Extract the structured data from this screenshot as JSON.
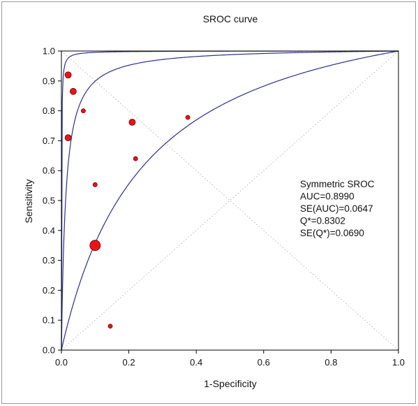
{
  "chart_data": {
    "type": "scatter",
    "title": "SROC curve",
    "xlabel": "1-Specificity",
    "ylabel": "Sensitivity",
    "xlim": [
      0,
      1
    ],
    "ylim": [
      0,
      1
    ],
    "xticks": [
      "0.0",
      "0.2",
      "0.4",
      "0.6",
      "0.8",
      "1.0"
    ],
    "yticks": [
      "0.0",
      "0.1",
      "0.2",
      "0.3",
      "0.4",
      "0.5",
      "0.6",
      "0.7",
      "0.8",
      "0.9",
      "1.0"
    ],
    "grid": "diagonal dotted lines",
    "point_color": "#e8141c",
    "curve_color": "#2b2f8a",
    "points": [
      {
        "x": 0.02,
        "y": 0.92,
        "size": "small"
      },
      {
        "x": 0.035,
        "y": 0.865,
        "size": "small"
      },
      {
        "x": 0.065,
        "y": 0.8,
        "size": "tiny"
      },
      {
        "x": 0.02,
        "y": 0.71,
        "size": "small"
      },
      {
        "x": 0.21,
        "y": 0.762,
        "size": "small"
      },
      {
        "x": 0.375,
        "y": 0.778,
        "size": "tiny"
      },
      {
        "x": 0.22,
        "y": 0.64,
        "size": "tiny"
      },
      {
        "x": 0.1,
        "y": 0.553,
        "size": "tiny"
      },
      {
        "x": 0.1,
        "y": 0.35,
        "size": "large"
      },
      {
        "x": 0.145,
        "y": 0.08,
        "size": "tiny"
      }
    ],
    "curves": [
      {
        "dor": 2000
      },
      {
        "dor": 80
      },
      {
        "dor": 5
      }
    ],
    "annotations": [
      "Symmetric SROC",
      "AUC=0.8990",
      "SE(AUC)=0.0647",
      "Q*=0.8302",
      "SE(Q*)=0.0690"
    ]
  }
}
